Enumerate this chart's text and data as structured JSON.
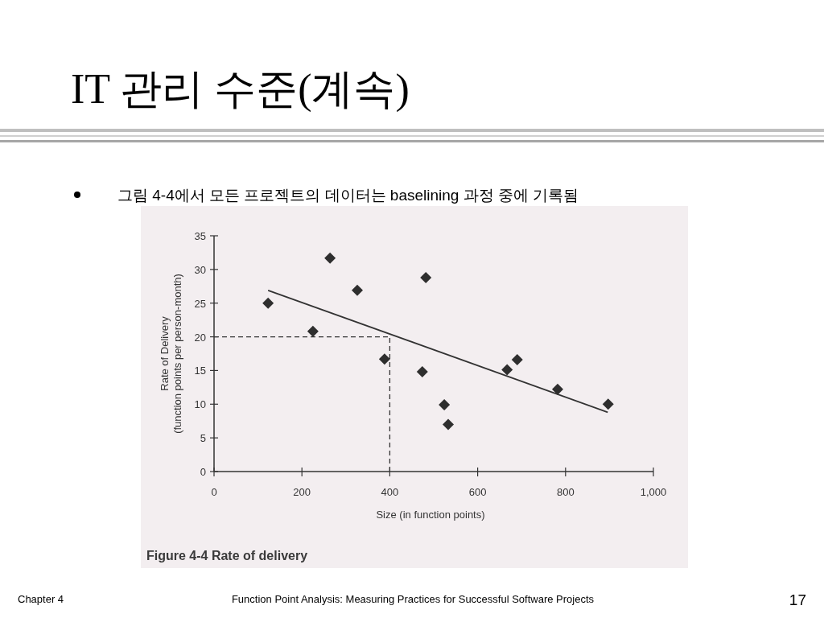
{
  "chart_data": {
    "type": "scatter",
    "title": "IT 관리 수준(계속)",
    "subtitle": "그림 4-4에서 모든 프로젝트의 데이터는 baselining 과정 중에 기록됨",
    "xlabel": "Size (in function points)",
    "ylabel": "Rate of Delivery\n(function points per person-month)",
    "annotations": [
      "Figure 4-4 Rate of delivery",
      "Chapter 4",
      "Function Point Analysis: Measuring Practices for Successful Software Projects",
      "17"
    ],
    "series": [
      {
        "type": "scatter",
        "marker": "diamond",
        "color": "#2e2e2e",
        "x": [
          123,
          225,
          264,
          326,
          388,
          482,
          474,
          524,
          533,
          667,
          690,
          782,
          897
        ],
        "values": [
          25.0,
          20.8,
          31.7,
          26.9,
          16.7,
          28.8,
          14.8,
          9.9,
          7.0,
          15.1,
          16.6,
          12.2,
          10.0
        ]
      },
      {
        "type": "line",
        "color": "#333333",
        "line_style": "solid",
        "x": [
          123,
          896
        ],
        "values": [
          26.9,
          8.8
        ]
      }
    ],
    "ref_lines": [
      {
        "axis": "y",
        "value": 20,
        "line_style": "dashed",
        "color": "#333333"
      },
      {
        "axis": "x",
        "value": 400,
        "line_style": "dashed",
        "color": "#333333"
      }
    ],
    "xlim": [
      0,
      1000
    ],
    "ylim": [
      0,
      35
    ],
    "xticks": [
      0,
      200,
      400,
      600,
      800,
      {
        "value": 1000,
        "label": "1,000"
      }
    ],
    "yticks": [
      0,
      5,
      10,
      15,
      20,
      25,
      30,
      35
    ]
  }
}
